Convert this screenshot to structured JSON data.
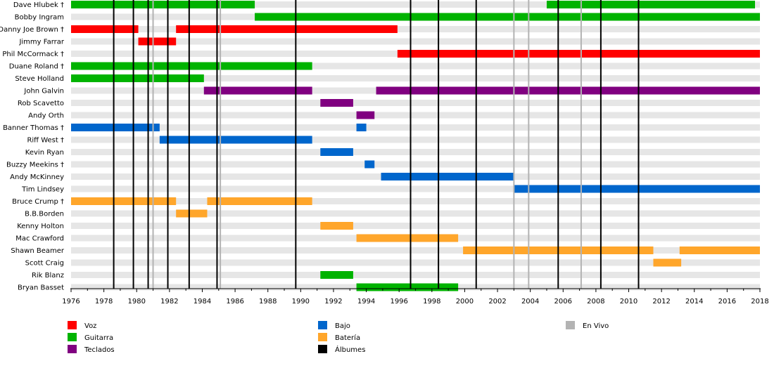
{
  "chart_data": {
    "type": "timeline",
    "x_range": [
      1976,
      2018
    ],
    "x_ticks": [
      "1976",
      "1978",
      "1980",
      "1982",
      "1984",
      "1986",
      "1988",
      "1990",
      "1992",
      "1994",
      "1996",
      "1998",
      "2000",
      "2002",
      "2004",
      "2006",
      "2008",
      "2010",
      "2012",
      "2014",
      "2016",
      "2018"
    ],
    "roles": [
      {
        "key": "voz",
        "name": "Voz",
        "color": "#ff0000"
      },
      {
        "key": "guitarra",
        "name": "Guitarra",
        "color": "#00b300"
      },
      {
        "key": "teclados",
        "name": "Teclados",
        "color": "#800080"
      },
      {
        "key": "bajo",
        "name": "Bajo",
        "color": "#0066cc"
      },
      {
        "key": "bateria",
        "name": "Batería",
        "color": "#ffa62b"
      },
      {
        "key": "albumes",
        "name": "Álbumes",
        "color": "#000000"
      },
      {
        "key": "envivo",
        "name": "En Vivo",
        "color": "#b3b3b3"
      }
    ],
    "members": [
      {
        "name": "Dave Hlubek †",
        "periods": [
          {
            "role": "guitarra",
            "start": 1976,
            "end": 1987.2
          },
          {
            "role": "guitarra",
            "start": 2005,
            "end": 2017.7
          }
        ]
      },
      {
        "name": "Bobby Ingram",
        "periods": [
          {
            "role": "guitarra",
            "start": 1987.2,
            "end": 2018
          }
        ]
      },
      {
        "name": "Danny Joe Brown †",
        "periods": [
          {
            "role": "voz",
            "start": 1976,
            "end": 1980.1
          },
          {
            "role": "voz",
            "start": 1982.4,
            "end": 1995.9
          }
        ]
      },
      {
        "name": "Jimmy Farrar",
        "periods": [
          {
            "role": "voz",
            "start": 1980.1,
            "end": 1982.4
          }
        ]
      },
      {
        "name": "Phil McCormack †",
        "periods": [
          {
            "role": "voz",
            "start": 1995.9,
            "end": 2018
          }
        ]
      },
      {
        "name": "Duane Roland †",
        "periods": [
          {
            "role": "guitarra",
            "start": 1976,
            "end": 1990.7
          }
        ]
      },
      {
        "name": "Steve Holland",
        "periods": [
          {
            "role": "guitarra",
            "start": 1976,
            "end": 1984.1
          }
        ]
      },
      {
        "name": "John Galvin",
        "periods": [
          {
            "role": "teclados",
            "start": 1984.1,
            "end": 1990.7
          },
          {
            "role": "teclados",
            "start": 1994.6,
            "end": 2018
          }
        ]
      },
      {
        "name": "Rob Scavetto",
        "periods": [
          {
            "role": "teclados",
            "start": 1991.2,
            "end": 1993.2
          }
        ]
      },
      {
        "name": "Andy Orth",
        "periods": [
          {
            "role": "teclados",
            "start": 1993.4,
            "end": 1994.5
          }
        ]
      },
      {
        "name": "Banner Thomas †",
        "periods": [
          {
            "role": "bajo",
            "start": 1976,
            "end": 1981.4
          },
          {
            "role": "bajo",
            "start": 1993.4,
            "end": 1994
          }
        ]
      },
      {
        "name": "Riff West †",
        "periods": [
          {
            "role": "bajo",
            "start": 1981.4,
            "end": 1990.7
          }
        ]
      },
      {
        "name": "Kevin Ryan",
        "periods": [
          {
            "role": "bajo",
            "start": 1991.2,
            "end": 1993.2
          }
        ]
      },
      {
        "name": "Buzzy Meekins †",
        "periods": [
          {
            "role": "bajo",
            "start": 1993.9,
            "end": 1994.5
          }
        ]
      },
      {
        "name": "Andy McKinney",
        "periods": [
          {
            "role": "bajo",
            "start": 1994.9,
            "end": 2003
          }
        ]
      },
      {
        "name": "Tim Lindsey",
        "periods": [
          {
            "role": "bajo",
            "start": 2003,
            "end": 2018
          }
        ]
      },
      {
        "name": "Bruce Crump †",
        "periods": [
          {
            "role": "bateria",
            "start": 1976,
            "end": 1982.4
          },
          {
            "role": "bateria",
            "start": 1984.3,
            "end": 1990.7
          }
        ]
      },
      {
        "name": "B.B.Borden",
        "periods": [
          {
            "role": "bateria",
            "start": 1982.4,
            "end": 1984.3
          }
        ]
      },
      {
        "name": "Kenny Holton",
        "periods": [
          {
            "role": "bateria",
            "start": 1991.2,
            "end": 1993.2
          }
        ]
      },
      {
        "name": "Mac Crawford",
        "periods": [
          {
            "role": "bateria",
            "start": 1993.4,
            "end": 1999.6
          }
        ]
      },
      {
        "name": "Shawn Beamer",
        "periods": [
          {
            "role": "bateria",
            "start": 1999.9,
            "end": 2011.5
          },
          {
            "role": "bateria",
            "start": 2013.1,
            "end": 2018
          }
        ]
      },
      {
        "name": "Scott Craig",
        "periods": [
          {
            "role": "bateria",
            "start": 2011.5,
            "end": 2013.2
          }
        ]
      },
      {
        "name": "Rik Blanz",
        "periods": [
          {
            "role": "guitarra",
            "start": 1991.2,
            "end": 1993.2
          }
        ]
      },
      {
        "name": "Bryan Basset",
        "periods": [
          {
            "role": "guitarra",
            "start": 1993.4,
            "end": 1999.6
          }
        ]
      }
    ],
    "album_years": [
      1978.6,
      1979.8,
      1980.7,
      1981.9,
      1983.2,
      1984.9,
      1989.7,
      1996.7,
      1998.4,
      2000.7,
      2005.7,
      2008.3,
      2010.6
    ],
    "live_years": [
      1981.0,
      1985.1,
      2003.0,
      2003.9,
      2007.1
    ],
    "grid": true,
    "legend_position": "bottom"
  }
}
